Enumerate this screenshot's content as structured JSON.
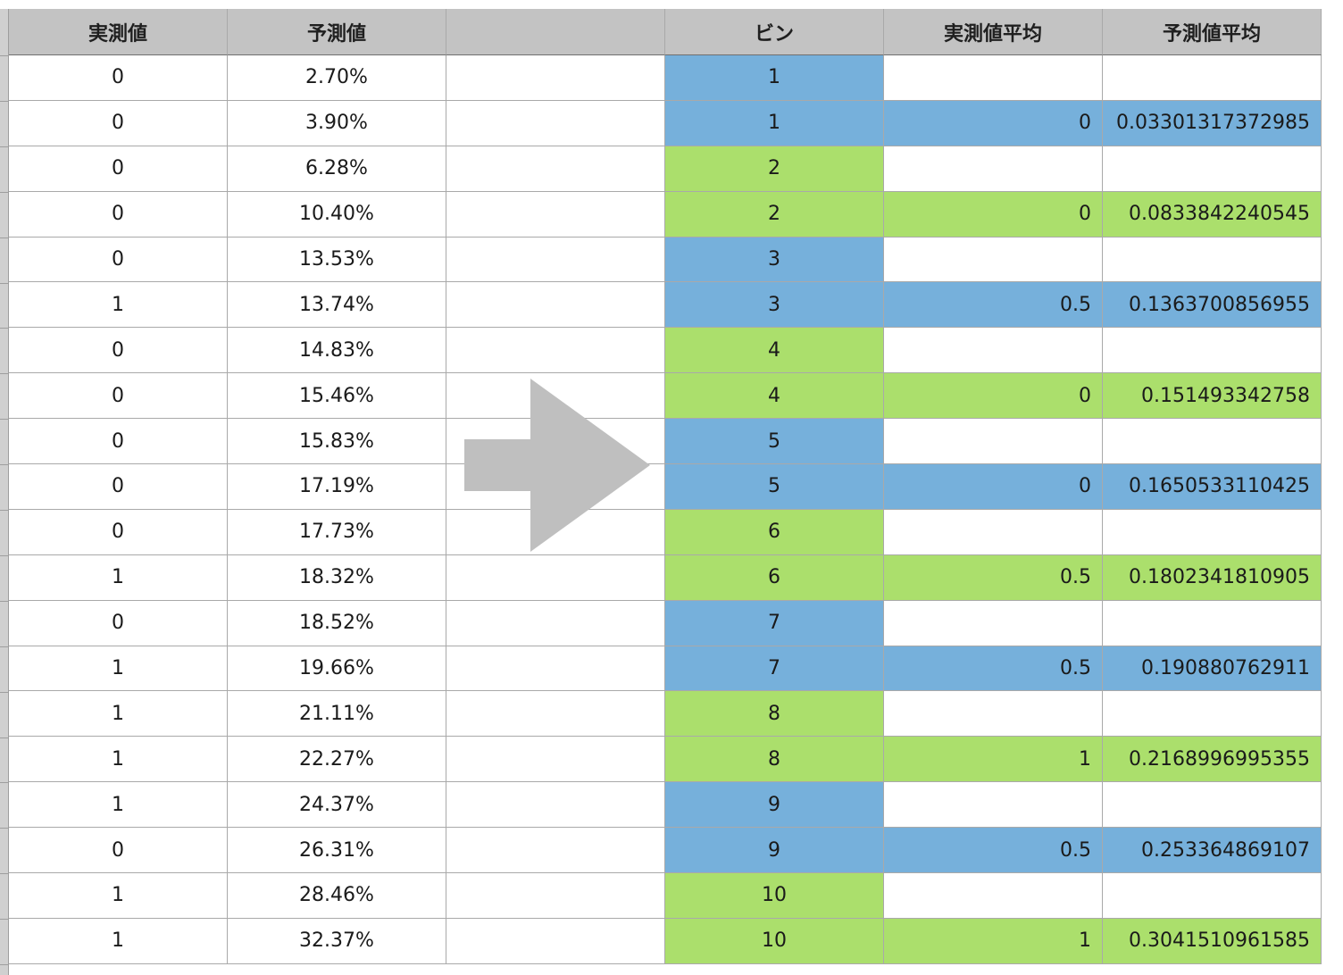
{
  "headers": [
    "実測値",
    "予測値",
    "",
    "ビン",
    "実測値平均",
    "予測値平均"
  ],
  "left_rows": [
    {
      "actual": "0",
      "predicted": "2.70%"
    },
    {
      "actual": "0",
      "predicted": "3.90%"
    },
    {
      "actual": "0",
      "predicted": "6.28%"
    },
    {
      "actual": "0",
      "predicted": "10.40%"
    },
    {
      "actual": "0",
      "predicted": "13.53%"
    },
    {
      "actual": "1",
      "predicted": "13.74%"
    },
    {
      "actual": "0",
      "predicted": "14.83%"
    },
    {
      "actual": "0",
      "predicted": "15.46%"
    },
    {
      "actual": "0",
      "predicted": "15.83%"
    },
    {
      "actual": "0",
      "predicted": "17.19%"
    },
    {
      "actual": "0",
      "predicted": "17.73%"
    },
    {
      "actual": "1",
      "predicted": "18.32%"
    },
    {
      "actual": "0",
      "predicted": "18.52%"
    },
    {
      "actual": "1",
      "predicted": "19.66%"
    },
    {
      "actual": "1",
      "predicted": "21.11%"
    },
    {
      "actual": "1",
      "predicted": "22.27%"
    },
    {
      "actual": "1",
      "predicted": "24.37%"
    },
    {
      "actual": "0",
      "predicted": "26.31%"
    },
    {
      "actual": "1",
      "predicted": "28.46%"
    },
    {
      "actual": "1",
      "predicted": "32.37%"
    }
  ],
  "right_rows": [
    {
      "bin": "1",
      "actual_avg": "",
      "predicted_avg": "",
      "color": "blue"
    },
    {
      "bin": "1",
      "actual_avg": "0",
      "predicted_avg": "0.03301317372985",
      "color": "blue"
    },
    {
      "bin": "2",
      "actual_avg": "",
      "predicted_avg": "",
      "color": "green"
    },
    {
      "bin": "2",
      "actual_avg": "0",
      "predicted_avg": "0.0833842240545",
      "color": "green"
    },
    {
      "bin": "3",
      "actual_avg": "",
      "predicted_avg": "",
      "color": "blue"
    },
    {
      "bin": "3",
      "actual_avg": "0.5",
      "predicted_avg": "0.1363700856955",
      "color": "blue"
    },
    {
      "bin": "4",
      "actual_avg": "",
      "predicted_avg": "",
      "color": "green"
    },
    {
      "bin": "4",
      "actual_avg": "0",
      "predicted_avg": "0.151493342758",
      "color": "green"
    },
    {
      "bin": "5",
      "actual_avg": "",
      "predicted_avg": "",
      "color": "blue"
    },
    {
      "bin": "5",
      "actual_avg": "0",
      "predicted_avg": "0.1650533110425",
      "color": "blue"
    },
    {
      "bin": "6",
      "actual_avg": "",
      "predicted_avg": "",
      "color": "green"
    },
    {
      "bin": "6",
      "actual_avg": "0.5",
      "predicted_avg": "0.1802341810905",
      "color": "green"
    },
    {
      "bin": "7",
      "actual_avg": "",
      "predicted_avg": "",
      "color": "blue"
    },
    {
      "bin": "7",
      "actual_avg": "0.5",
      "predicted_avg": "0.190880762911",
      "color": "blue"
    },
    {
      "bin": "8",
      "actual_avg": "",
      "predicted_avg": "",
      "color": "green"
    },
    {
      "bin": "8",
      "actual_avg": "1",
      "predicted_avg": "0.2168996995355",
      "color": "green"
    },
    {
      "bin": "9",
      "actual_avg": "",
      "predicted_avg": "",
      "color": "blue"
    },
    {
      "bin": "9",
      "actual_avg": "0.5",
      "predicted_avg": "0.253364869107",
      "color": "blue"
    },
    {
      "bin": "10",
      "actual_avg": "",
      "predicted_avg": "",
      "color": "green"
    },
    {
      "bin": "10",
      "actual_avg": "1",
      "predicted_avg": "0.3041510961585",
      "color": "green"
    }
  ],
  "arrow_icon": "right-arrow-icon",
  "colors": {
    "header": "#c3c3c3",
    "blue": "#76b0db",
    "green": "#abdf6c",
    "arrow": "#bfbfbf"
  }
}
